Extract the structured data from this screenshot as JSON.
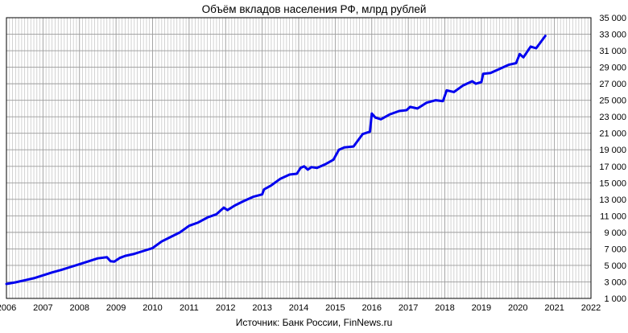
{
  "chart_data": {
    "type": "line",
    "title": "Объём вкладов населения РФ, млрд рублей",
    "source": "Источник: Банк России, FinNews.ru",
    "xlabel": "",
    "ylabel": "",
    "xlim": [
      2006,
      2022
    ],
    "ylim": [
      1000,
      35000
    ],
    "x_ticks": [
      "2006",
      "2007",
      "2008",
      "2009",
      "2010",
      "2011",
      "2012",
      "2013",
      "2014",
      "2015",
      "2016",
      "2017",
      "2018",
      "2019",
      "2020",
      "2021",
      "2022"
    ],
    "y_ticks": [
      "1 000",
      "3 000",
      "5 000",
      "7 000",
      "9 000",
      "11 000",
      "13 000",
      "15 000",
      "17 000",
      "19 000",
      "21 000",
      "23 000",
      "25 000",
      "27 000",
      "29 000",
      "31 000",
      "33 000",
      "35 000"
    ],
    "grid": true,
    "y_axis_position": "right",
    "colors": {
      "line": "#0000ee",
      "grid": "#c0c0c0",
      "axis": "#000000"
    },
    "series": [
      {
        "x": [
          2006.0,
          2006.25,
          2006.5,
          2006.75,
          2007.0,
          2007.25,
          2007.5,
          2007.75,
          2008.0,
          2008.25,
          2008.5,
          2008.75,
          2008.85,
          2008.95,
          2009.1,
          2009.25,
          2009.5,
          2009.75,
          2010.0,
          2010.25,
          2010.5,
          2010.75,
          2011.0,
          2011.25,
          2011.5,
          2011.75,
          2011.95,
          2012.05,
          2012.25,
          2012.5,
          2012.75,
          2013.0,
          2013.05,
          2013.25,
          2013.5,
          2013.75,
          2013.95,
          2014.05,
          2014.15,
          2014.25,
          2014.35,
          2014.5,
          2014.75,
          2014.95,
          2015.1,
          2015.25,
          2015.5,
          2015.75,
          2015.95,
          2016.0,
          2016.1,
          2016.25,
          2016.5,
          2016.75,
          2016.95,
          2017.05,
          2017.25,
          2017.5,
          2017.75,
          2017.95,
          2018.05,
          2018.25,
          2018.5,
          2018.75,
          2018.85,
          2019.0,
          2019.05,
          2019.25,
          2019.5,
          2019.75,
          2019.95,
          2020.05,
          2020.15,
          2020.35,
          2020.5,
          2020.75
        ],
        "y": [
          2750,
          2950,
          3200,
          3450,
          3800,
          4150,
          4450,
          4800,
          5150,
          5500,
          5850,
          6000,
          5500,
          5450,
          5900,
          6150,
          6400,
          6750,
          7100,
          7900,
          8450,
          9000,
          9800,
          10200,
          10800,
          11200,
          12000,
          11700,
          12250,
          12800,
          13300,
          13600,
          14200,
          14700,
          15500,
          16000,
          16100,
          16800,
          17000,
          16600,
          16900,
          16800,
          17300,
          17800,
          19000,
          19300,
          19400,
          20900,
          21200,
          23400,
          22900,
          22700,
          23300,
          23700,
          23800,
          24200,
          24000,
          24700,
          25000,
          24900,
          26200,
          26000,
          26800,
          27300,
          27000,
          27200,
          28200,
          28300,
          28800,
          29300,
          29500,
          30600,
          30200,
          31500,
          31300,
          32800
        ]
      }
    ]
  }
}
